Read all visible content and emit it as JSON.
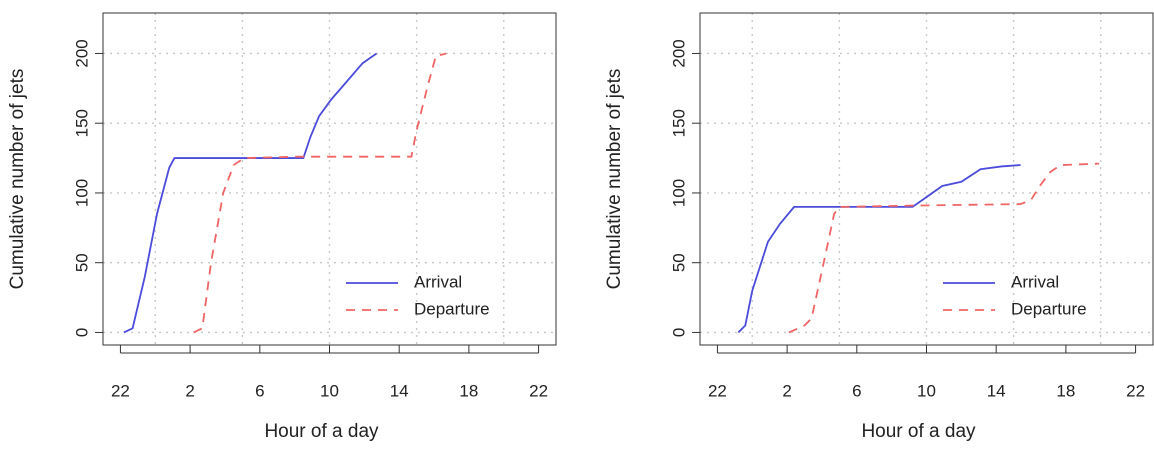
{
  "chart_data": [
    {
      "type": "line",
      "xlabel": "Hour of a day",
      "ylabel": "Cumulative number of jets",
      "xlim": [
        21,
        47
      ],
      "ylim": [
        -9,
        229
      ],
      "xticks": [
        22,
        {
          "value": 26,
          "label": "2"
        },
        {
          "value": 30,
          "label": "6"
        },
        {
          "value": 34,
          "label": "10"
        },
        {
          "value": 38,
          "label": "14"
        },
        {
          "value": 42,
          "label": "18"
        },
        {
          "value": 46,
          "label": "22"
        }
      ],
      "yticks": [
        0,
        50,
        100,
        150,
        200
      ],
      "xgrid": [
        24,
        29,
        34,
        39,
        44
      ],
      "grid": true,
      "legend": "bottom-right",
      "series": [
        {
          "name": "Arrival",
          "color": "#4b4bdc",
          "dashed": false,
          "x": [
            22.2,
            22.7,
            23.4,
            24.1,
            24.8,
            25.1,
            32.5,
            32.9,
            33.4,
            34.1,
            35,
            35.9,
            36.7
          ],
          "values": [
            0,
            3,
            40,
            85,
            118,
            125,
            125,
            140,
            155,
            167,
            180,
            193,
            200
          ]
        },
        {
          "name": "Departure",
          "color": "#f06464",
          "dashed": true,
          "x": [
            26.2,
            26.7,
            27.2,
            27.9,
            28.5,
            29.1,
            32.2,
            38.7,
            39,
            39.6,
            40.1,
            40.7
          ],
          "values": [
            0,
            3,
            50,
            100,
            120,
            125,
            126,
            126,
            145,
            175,
            198,
            200
          ]
        }
      ]
    },
    {
      "type": "line",
      "xlabel": "Hour of a day",
      "ylabel": "Cumulative number of jets",
      "xlim": [
        21,
        47
      ],
      "ylim": [
        -9,
        229
      ],
      "xticks": [
        22,
        {
          "value": 26,
          "label": "2"
        },
        {
          "value": 30,
          "label": "6"
        },
        {
          "value": 34,
          "label": "10"
        },
        {
          "value": 38,
          "label": "14"
        },
        {
          "value": 42,
          "label": "18"
        },
        {
          "value": 46,
          "label": "22"
        }
      ],
      "yticks": [
        0,
        50,
        100,
        150,
        200
      ],
      "xgrid": [
        24,
        29,
        34,
        39,
        44
      ],
      "grid": true,
      "legend": "bottom-right",
      "series": [
        {
          "name": "Arrival",
          "color": "#4b4bdc",
          "dashed": false,
          "x": [
            23.2,
            23.6,
            24,
            24.9,
            25.6,
            26.4,
            33.2,
            34,
            34.9,
            36,
            37.1,
            38.3,
            39.4
          ],
          "values": [
            0,
            5,
            30,
            65,
            78,
            90,
            90,
            97,
            105,
            108,
            117,
            119,
            120
          ]
        },
        {
          "name": "Departure",
          "color": "#f06464",
          "dashed": true,
          "x": [
            26.1,
            27,
            27.4,
            28.1,
            28.7,
            29,
            33.5,
            39.4,
            40,
            40.5,
            41.1,
            41.7,
            43.9
          ],
          "values": [
            0,
            5,
            10,
            50,
            85,
            90,
            91,
            92,
            95,
            105,
            115,
            120,
            121
          ]
        }
      ]
    }
  ]
}
